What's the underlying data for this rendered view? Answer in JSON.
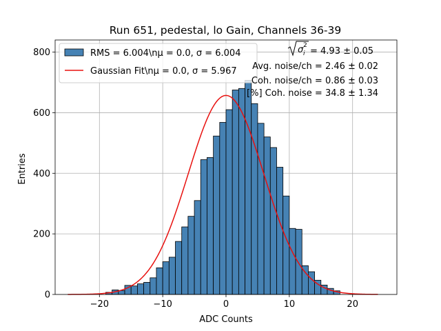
{
  "chart_data": {
    "type": "bar",
    "title": "Run 651, pedestal, lo Gain, Channels 36-39",
    "xlabel": "ADC Counts",
    "ylabel": "Entries",
    "xlim": [
      -27,
      27
    ],
    "ylim": [
      0,
      840
    ],
    "xticks": [
      -20,
      -10,
      0,
      10,
      20
    ],
    "xtick_labels": [
      "−20",
      "−10",
      "0",
      "10",
      "20"
    ],
    "yticks": [
      0,
      200,
      400,
      600,
      800
    ],
    "ytick_labels": [
      "0",
      "200",
      "400",
      "600",
      "800"
    ],
    "grid": true,
    "legend_placement": "top-left",
    "bar_color": "#4682b4",
    "fit_color": "#e8100e",
    "bin_width": 1,
    "bin_left_edges": [
      -19,
      -18,
      -17,
      -16,
      -15,
      -14,
      -13,
      -12,
      -11,
      -10,
      -9,
      -8,
      -7,
      -6,
      -5,
      -4,
      -3,
      -2,
      -1,
      0,
      1,
      2,
      3,
      4,
      5,
      6,
      7,
      8,
      9,
      10,
      11,
      12,
      13,
      14,
      15,
      16,
      17
    ],
    "values": [
      7,
      15,
      13,
      30,
      28,
      35,
      40,
      55,
      88,
      108,
      123,
      175,
      223,
      258,
      310,
      445,
      452,
      523,
      568,
      610,
      675,
      680,
      707,
      630,
      565,
      520,
      485,
      420,
      325,
      218,
      215,
      95,
      75,
      47,
      31,
      20,
      12
    ],
    "series": [
      {
        "name": "RMS = 6.004\\nμ = 0.0, σ = 6.004",
        "kind": "histogram"
      },
      {
        "name": "Gaussian Fit\\nμ = 0.0, σ = 5.967",
        "kind": "line",
        "mu": 0.0,
        "sigma": 5.967,
        "amplitude": 657,
        "x_range": [
          -25,
          24
        ]
      }
    ],
    "annotations": [
      {
        "label": "sqrt-sigma-squared",
        "text": " = 4.93 ± 0.05"
      },
      {
        "label": "avg-noise",
        "text": "Avg. noise/ch = 2.46 ± 0.02"
      },
      {
        "label": "coh-noise",
        "text": "Coh. noise/ch = 0.86 ± 0.03"
      },
      {
        "label": "coh-noise-percent",
        "text": "[%] Coh. noise = 34.8 ± 1.34"
      }
    ]
  }
}
